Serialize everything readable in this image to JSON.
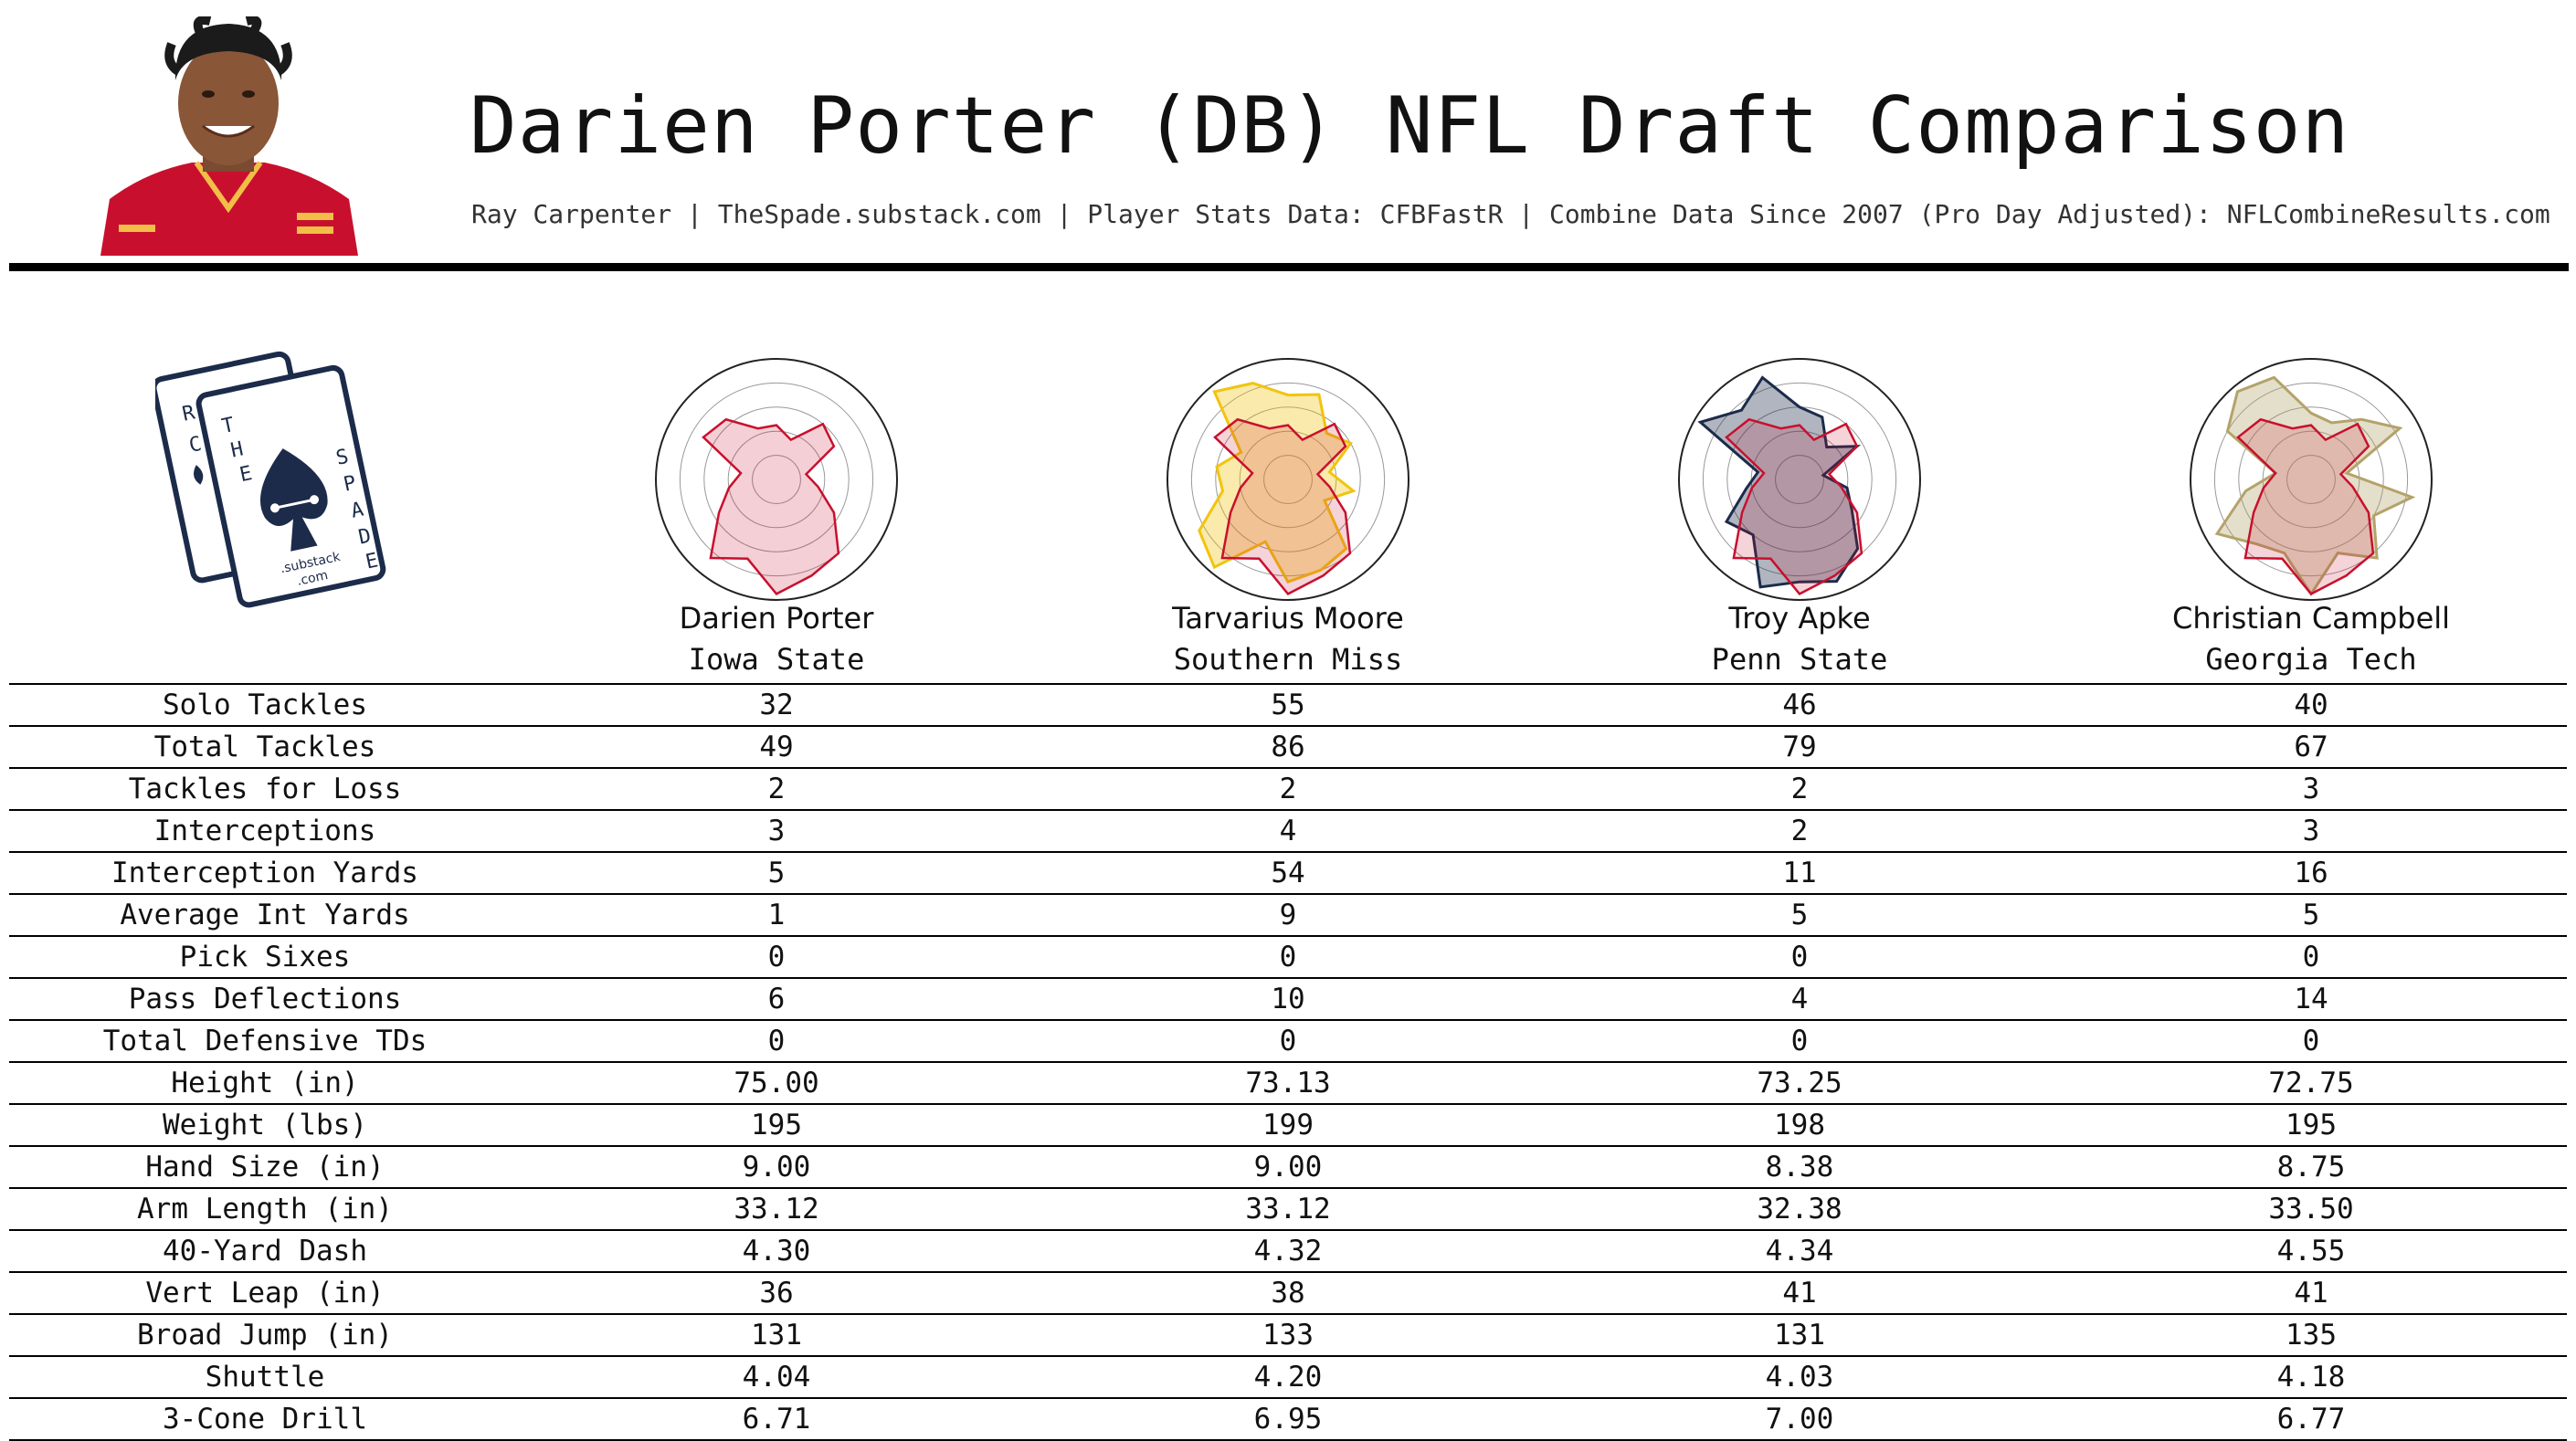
{
  "header": {
    "title": "Darien Porter (DB) NFL Draft Comparison",
    "subtitle": "Ray Carpenter | TheSpade.substack.com | Player Stats Data: CFBFastR | Combine Data Since 2007 (Pro Day Adjusted): NFLCombineResults.com"
  },
  "logo": {
    "letters_card1": [
      "R",
      "C"
    ],
    "letters_card2": [
      "T",
      "H",
      "E"
    ],
    "letters_spade": [
      "S",
      "P",
      "A",
      "D",
      "E"
    ],
    "substack": ".substack",
    "com": ".com"
  },
  "colors": {
    "porter": "#c8102e",
    "moore": "#f1c40f",
    "apke": "#1c2b4a",
    "campbell": "#b3a369",
    "grid": "#999999"
  },
  "players": [
    {
      "name": "Darien Porter",
      "school": "Iowa State"
    },
    {
      "name": "Tarvarius Moore",
      "school": "Southern Miss"
    },
    {
      "name": "Troy Apke",
      "school": "Penn State"
    },
    {
      "name": "Christian Campbell",
      "school": "Georgia Tech"
    }
  ],
  "stats": [
    {
      "label": "Solo Tackles",
      "values": [
        "32",
        "55",
        "46",
        "40"
      ]
    },
    {
      "label": "Total Tackles",
      "values": [
        "49",
        "86",
        "79",
        "67"
      ]
    },
    {
      "label": "Tackles for Loss",
      "values": [
        "2",
        "2",
        "2",
        "3"
      ]
    },
    {
      "label": "Interceptions",
      "values": [
        "3",
        "4",
        "2",
        "3"
      ]
    },
    {
      "label": "Interception Yards",
      "values": [
        "5",
        "54",
        "11",
        "16"
      ]
    },
    {
      "label": "Average Int Yards",
      "values": [
        "1",
        "9",
        "5",
        "5"
      ]
    },
    {
      "label": "Pick Sixes",
      "values": [
        "0",
        "0",
        "0",
        "0"
      ]
    },
    {
      "label": "Pass Deflections",
      "values": [
        "6",
        "10",
        "4",
        "14"
      ]
    },
    {
      "label": "Total Defensive TDs",
      "values": [
        "0",
        "0",
        "0",
        "0"
      ]
    },
    {
      "label": "Height (in)",
      "values": [
        "75.00",
        "73.13",
        "73.25",
        "72.75"
      ]
    },
    {
      "label": "Weight (lbs)",
      "values": [
        "195",
        "199",
        "198",
        "195"
      ]
    },
    {
      "label": "Hand Size (in)",
      "values": [
        "9.00",
        "9.00",
        "8.38",
        "8.75"
      ]
    },
    {
      "label": "Arm Length (in)",
      "values": [
        "33.12",
        "33.12",
        "32.38",
        "33.50"
      ]
    },
    {
      "label": "40-Yard Dash",
      "values": [
        "4.30",
        "4.32",
        "4.34",
        "4.55"
      ]
    },
    {
      "label": "Vert Leap (in)",
      "values": [
        "36",
        "38",
        "41",
        "41"
      ]
    },
    {
      "label": "Broad Jump (in)",
      "values": [
        "131",
        "133",
        "131",
        "135"
      ]
    },
    {
      "label": "Shuttle",
      "values": [
        "4.04",
        "4.20",
        "4.03",
        "4.18"
      ]
    },
    {
      "label": "3-Cone Drill",
      "values": [
        "6.71",
        "6.95",
        "7.00",
        "6.77"
      ]
    }
  ],
  "chart_data": {
    "type": "radar",
    "rings": 5,
    "axes": 18,
    "series": [
      {
        "name": "Darien Porter",
        "values": [
          0.45,
          0.35,
          0.6,
          0.55,
          0.25,
          0.35,
          0.55,
          0.8,
          0.85,
          0.95,
          0.7,
          0.85,
          0.55,
          0.4,
          0.3,
          0.7,
          0.65,
          0.45
        ]
      },
      {
        "name": "Tarvarius Moore",
        "values": [
          0.7,
          0.75,
          0.5,
          0.6,
          0.35,
          0.55,
          0.35,
          0.75,
          0.8,
          0.85,
          0.55,
          0.95,
          0.85,
          0.55,
          0.6,
          0.45,
          0.95,
          0.85
        ]
      },
      {
        "name": "Troy Apke",
        "values": [
          0.6,
          0.55,
          0.35,
          0.55,
          0.2,
          0.4,
          0.5,
          0.75,
          0.9,
          0.85,
          0.95,
          0.6,
          0.7,
          0.45,
          0.35,
          0.95,
          0.75,
          0.9
        ]
      },
      {
        "name": "Christian Campbell",
        "values": [
          0.55,
          0.5,
          0.65,
          0.85,
          0.3,
          0.85,
          0.6,
          0.85,
          0.65,
          0.95,
          0.65,
          0.7,
          0.9,
          0.55,
          0.3,
          0.8,
          0.95,
          0.9
        ]
      }
    ]
  }
}
